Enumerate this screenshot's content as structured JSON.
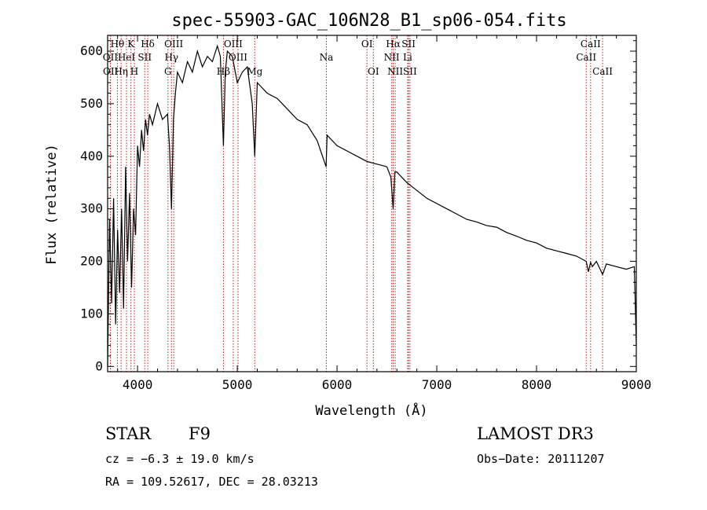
{
  "chart_data": {
    "type": "line",
    "title": "spec-55903-GAC_106N28_B1_sp06-054.fits",
    "xlabel": "Wavelength (Å)",
    "ylabel": "Flux (relative)",
    "xlim": [
      3700,
      9000
    ],
    "ylim": [
      -10,
      630
    ],
    "xticks": [
      4000,
      5000,
      6000,
      7000,
      8000,
      9000
    ],
    "yticks": [
      0,
      100,
      200,
      300,
      400,
      500,
      600
    ],
    "series": [
      {
        "name": "spectrum",
        "x": [
          3700,
          3720,
          3740,
          3760,
          3780,
          3800,
          3820,
          3840,
          3860,
          3880,
          3900,
          3920,
          3940,
          3960,
          3980,
          4000,
          4020,
          4040,
          4060,
          4080,
          4100,
          4120,
          4150,
          4200,
          4250,
          4300,
          4320,
          4340,
          4360,
          4380,
          4400,
          4450,
          4500,
          4550,
          4600,
          4650,
          4700,
          4750,
          4800,
          4830,
          4861,
          4880,
          4900,
          4950,
          5000,
          5050,
          5100,
          5150,
          5175,
          5200,
          5250,
          5300,
          5400,
          5500,
          5600,
          5700,
          5800,
          5890,
          5900,
          6000,
          6100,
          6200,
          6300,
          6400,
          6500,
          6540,
          6563,
          6580,
          6600,
          6700,
          6800,
          6900,
          7000,
          7100,
          7200,
          7300,
          7400,
          7500,
          7600,
          7700,
          7800,
          7900,
          8000,
          8100,
          8200,
          8300,
          8400,
          8498,
          8520,
          8542,
          8560,
          8600,
          8662,
          8700,
          8800,
          8900,
          8980,
          9000
        ],
        "y": [
          0,
          280,
          120,
          320,
          80,
          260,
          140,
          300,
          110,
          380,
          200,
          330,
          150,
          300,
          250,
          420,
          380,
          450,
          410,
          470,
          440,
          480,
          460,
          500,
          470,
          480,
          420,
          300,
          470,
          520,
          560,
          540,
          580,
          560,
          600,
          570,
          590,
          580,
          610,
          590,
          420,
          560,
          600,
          590,
          540,
          560,
          570,
          500,
          400,
          540,
          530,
          520,
          510,
          490,
          470,
          460,
          430,
          380,
          440,
          420,
          410,
          400,
          390,
          385,
          380,
          360,
          300,
          370,
          370,
          350,
          335,
          320,
          310,
          300,
          290,
          280,
          275,
          268,
          265,
          255,
          248,
          240,
          235,
          225,
          220,
          215,
          210,
          200,
          180,
          198,
          190,
          200,
          175,
          195,
          190,
          185,
          190,
          40
        ]
      }
    ],
    "line_markers": [
      {
        "label": "Hθ",
        "wl": 3798,
        "row": 0
      },
      {
        "label": "K",
        "wl": 3934,
        "row": 0
      },
      {
        "label": "Hδ",
        "wl": 4102,
        "row": 0
      },
      {
        "label": "OIII",
        "wl": 4363,
        "row": 0
      },
      {
        "label": "OIII",
        "wl": 4959,
        "row": 0
      },
      {
        "label": "OI",
        "wl": 6300,
        "row": 0
      },
      {
        "label": "Hα",
        "wl": 6563,
        "row": 0
      },
      {
        "label": "SII",
        "wl": 6717,
        "row": 0
      },
      {
        "label": "CaII",
        "wl": 8542,
        "row": 0
      },
      {
        "label": "OII",
        "wl": 3727,
        "row": 1
      },
      {
        "label": "HeI",
        "wl": 3889,
        "row": 1
      },
      {
        "label": "SII",
        "wl": 4072,
        "row": 1
      },
      {
        "label": "Hγ",
        "wl": 4340,
        "row": 1
      },
      {
        "label": "OIII",
        "wl": 5007,
        "row": 1
      },
      {
        "label": "Na",
        "wl": 5893,
        "row": 1
      },
      {
        "label": "NII",
        "wl": 6548,
        "row": 1
      },
      {
        "label": "Li",
        "wl": 6708,
        "row": 1
      },
      {
        "label": "CaII",
        "wl": 8498,
        "row": 1
      },
      {
        "label": "OII",
        "wl": 3729,
        "row": 2
      },
      {
        "label": "Hη",
        "wl": 3835,
        "row": 2
      },
      {
        "label": "H",
        "wl": 3968,
        "row": 2
      },
      {
        "label": "G",
        "wl": 4305,
        "row": 2
      },
      {
        "label": "Hβ",
        "wl": 4861,
        "row": 2
      },
      {
        "label": "Mg",
        "wl": 5175,
        "row": 2
      },
      {
        "label": "OI",
        "wl": 6364,
        "row": 2
      },
      {
        "label": "NII",
        "wl": 6583,
        "row": 2
      },
      {
        "label": "SII",
        "wl": 6731,
        "row": 2
      },
      {
        "label": "CaII",
        "wl": 8662,
        "row": 2
      }
    ],
    "colors": {
      "spectrum": "#000000",
      "marker": "#b22222"
    }
  },
  "info": {
    "class": "STAR",
    "subclass": "F9",
    "survey": "LAMOST DR3",
    "cz": "cz = −6.3 ± 19.0 km/s",
    "obs_date": "Obs−Date: 20111207",
    "coords": "RA = 109.52617, DEC =  28.03213"
  }
}
